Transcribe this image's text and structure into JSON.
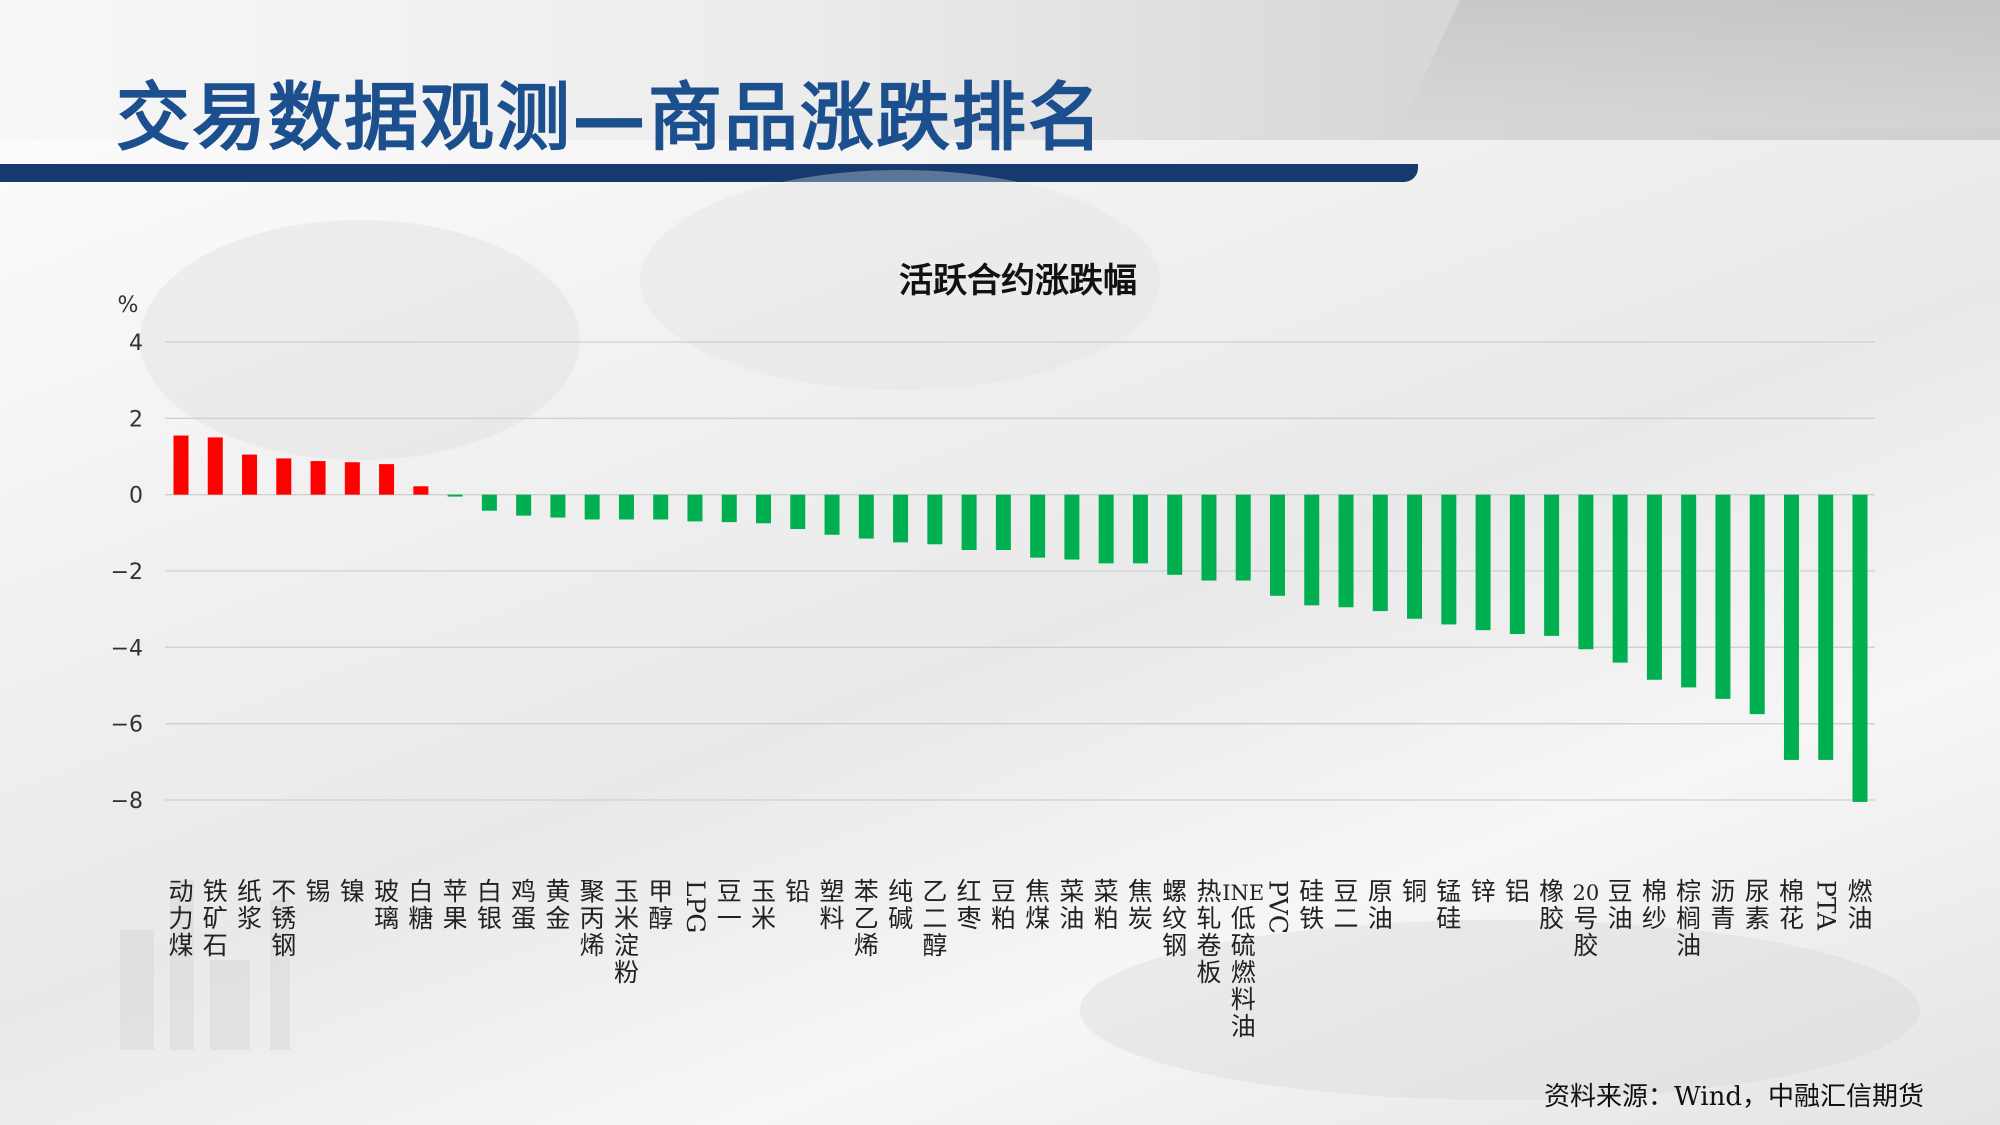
{
  "page": {
    "title": "交易数据观测—商品涨跌排名"
  },
  "source": "资料来源：Wind，中融汇信期货",
  "colors": {
    "up": "#ff0000",
    "down": "#00b050",
    "title": "#1c4f8d",
    "bar": "#163a6e"
  },
  "chart_data": {
    "type": "bar",
    "title": "活跃合约涨跌幅",
    "ylabel": "%",
    "ylim": [
      -8,
      4
    ],
    "yticks": [
      4,
      2,
      0,
      -2,
      -4,
      -6,
      -8
    ],
    "grid": true,
    "categories": [
      "动力煤",
      "铁矿石",
      "纸浆",
      "不锈钢",
      "锡",
      "镍",
      "玻璃",
      "白糖",
      "苹果",
      "白银",
      "鸡蛋",
      "黄金",
      "聚丙烯",
      "玉米淀粉",
      "甲醇",
      "LPG",
      "豆一",
      "玉米",
      "铅",
      "塑料",
      "苯乙烯",
      "纯碱",
      "乙二醇",
      "红枣",
      "豆粕",
      "焦煤",
      "菜油",
      "菜粕",
      "焦炭",
      "螺纹钢",
      "热轧卷板",
      "INE低硫燃料油",
      "PVC",
      "硅铁",
      "豆二",
      "原油",
      "铜",
      "锰硅",
      "锌",
      "铝",
      "橡胶",
      "20号胶",
      "豆油",
      "棉纱",
      "棕榈油",
      "沥青",
      "尿素",
      "棉花",
      "PTA",
      "燃油"
    ],
    "values": [
      1.55,
      1.5,
      1.05,
      0.95,
      0.88,
      0.85,
      0.8,
      0.22,
      -0.05,
      -0.42,
      -0.55,
      -0.6,
      -0.65,
      -0.65,
      -0.65,
      -0.7,
      -0.72,
      -0.75,
      -0.9,
      -1.05,
      -1.15,
      -1.25,
      -1.3,
      -1.45,
      -1.45,
      -1.65,
      -1.7,
      -1.8,
      -1.8,
      -2.1,
      -2.25,
      -2.25,
      -2.65,
      -2.9,
      -2.95,
      -3.05,
      -3.25,
      -3.4,
      -3.55,
      -3.65,
      -3.7,
      -4.05,
      -4.4,
      -4.85,
      -5.05,
      -5.35,
      -5.75,
      -6.95,
      -6.95,
      -8.05
    ]
  }
}
